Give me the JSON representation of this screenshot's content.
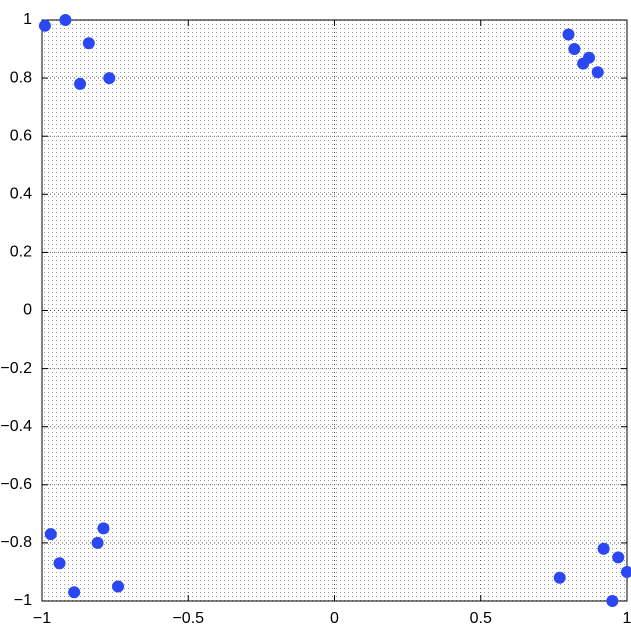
{
  "chart_data": {
    "type": "scatter",
    "xlim": [
      -1,
      1
    ],
    "ylim": [
      -1,
      1
    ],
    "xticks": [
      {
        "value": -1,
        "label": "−1"
      },
      {
        "value": -0.5,
        "label": "−0.5"
      },
      0,
      0.5,
      1
    ],
    "yticks": [
      {
        "value": -1,
        "label": "−1"
      },
      {
        "value": -0.8,
        "label": "−0.8"
      },
      {
        "value": -0.6,
        "label": "−0.6"
      },
      {
        "value": -0.4,
        "label": "−0.4"
      },
      {
        "value": -0.2,
        "label": "−0.2"
      },
      0,
      0.2,
      0.4,
      0.6,
      0.8,
      1
    ],
    "grid": true,
    "series": [
      {
        "color": "#2a47f2",
        "x": [
          -0.99,
          -0.92,
          -0.84,
          -0.77,
          -0.87,
          0.8,
          0.82,
          0.85,
          0.87,
          0.9,
          -0.97,
          -0.94,
          -0.89,
          -0.79,
          -0.81,
          -0.74,
          0.77,
          0.92,
          0.97,
          1.0,
          0.95
        ],
        "values": [
          0.98,
          1.0,
          0.92,
          0.8,
          0.78,
          0.95,
          0.9,
          0.85,
          0.87,
          0.82,
          -0.77,
          -0.87,
          -0.97,
          -0.75,
          -0.8,
          -0.95,
          -0.92,
          -0.82,
          -0.85,
          -0.9,
          -1.0
        ]
      }
    ]
  }
}
